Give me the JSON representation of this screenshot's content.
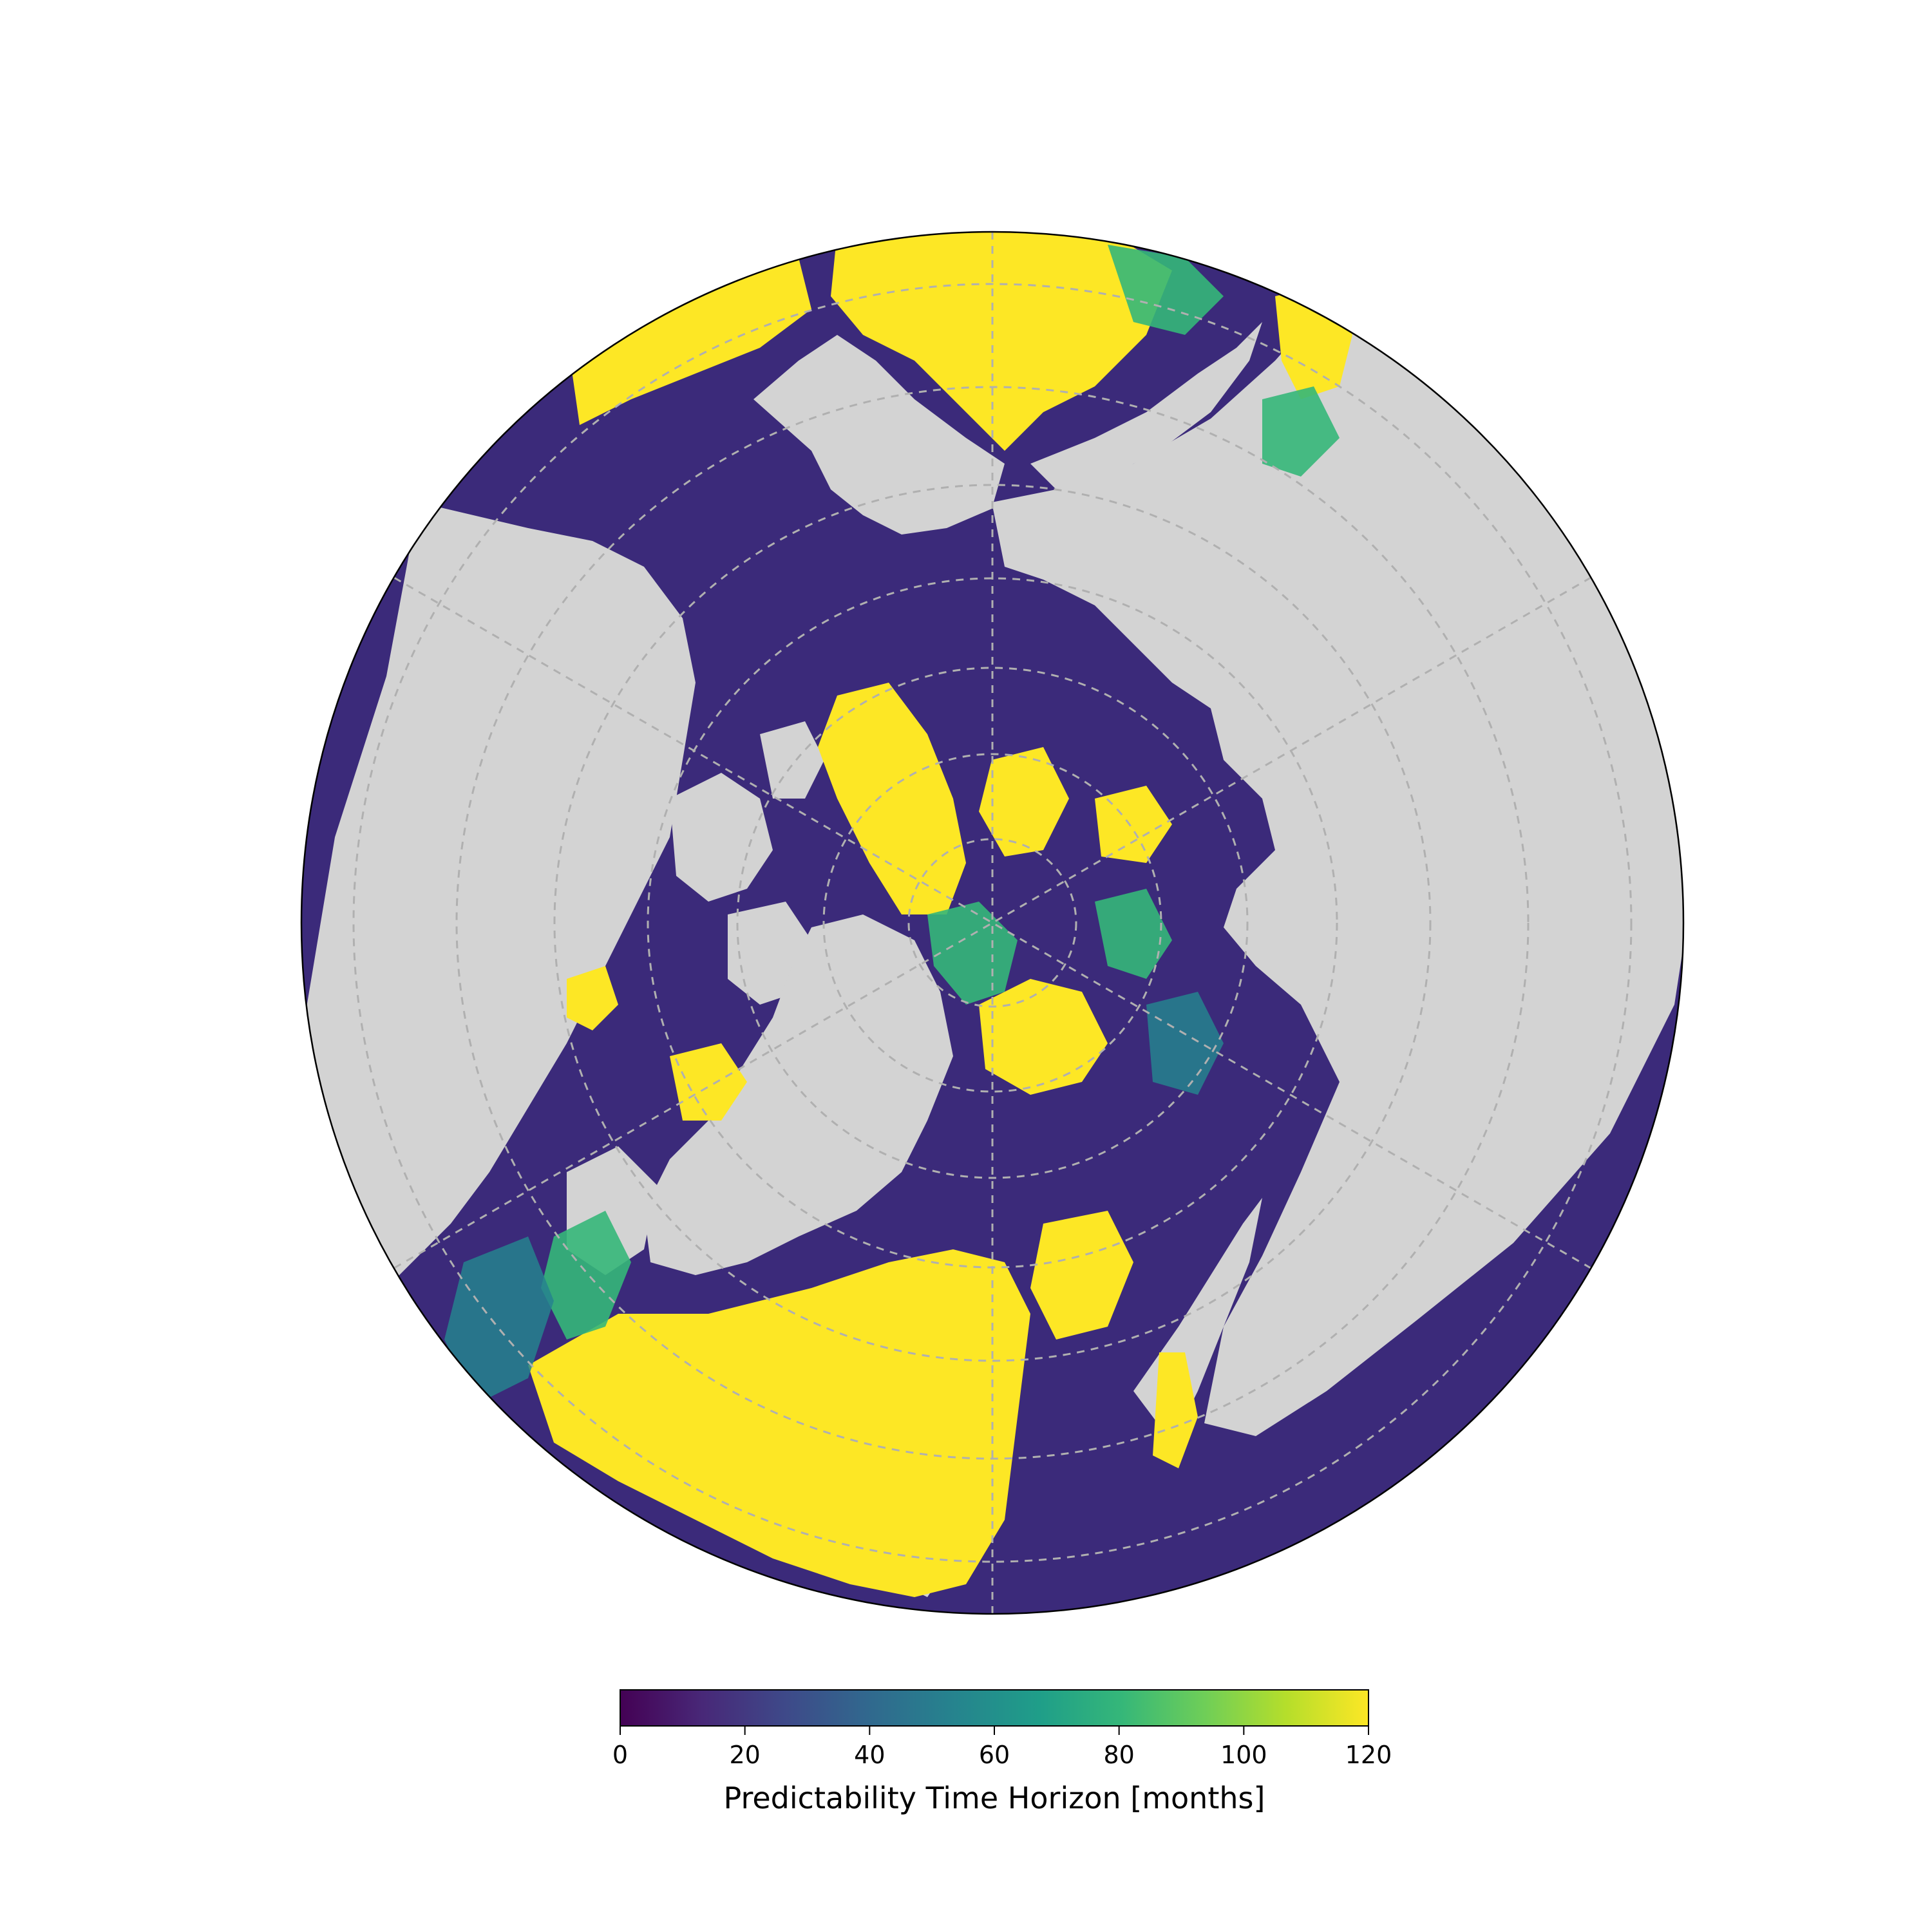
{
  "map": {
    "projection": "north-polar-stereographic",
    "land_color": "#d3d3d3",
    "gridline_color": "#b0b0b0"
  },
  "colorbar": {
    "label": "Predictability Time Horizon [months]",
    "min": 0,
    "max": 120,
    "ticks": [
      "0",
      "20",
      "40",
      "60",
      "80",
      "100",
      "120"
    ],
    "colormap": "viridis",
    "stops": [
      "#440154",
      "#482878",
      "#3e4989",
      "#31688e",
      "#26828e",
      "#1f9e89",
      "#35b779",
      "#6ece58",
      "#b5de2b",
      "#fde725"
    ]
  }
}
